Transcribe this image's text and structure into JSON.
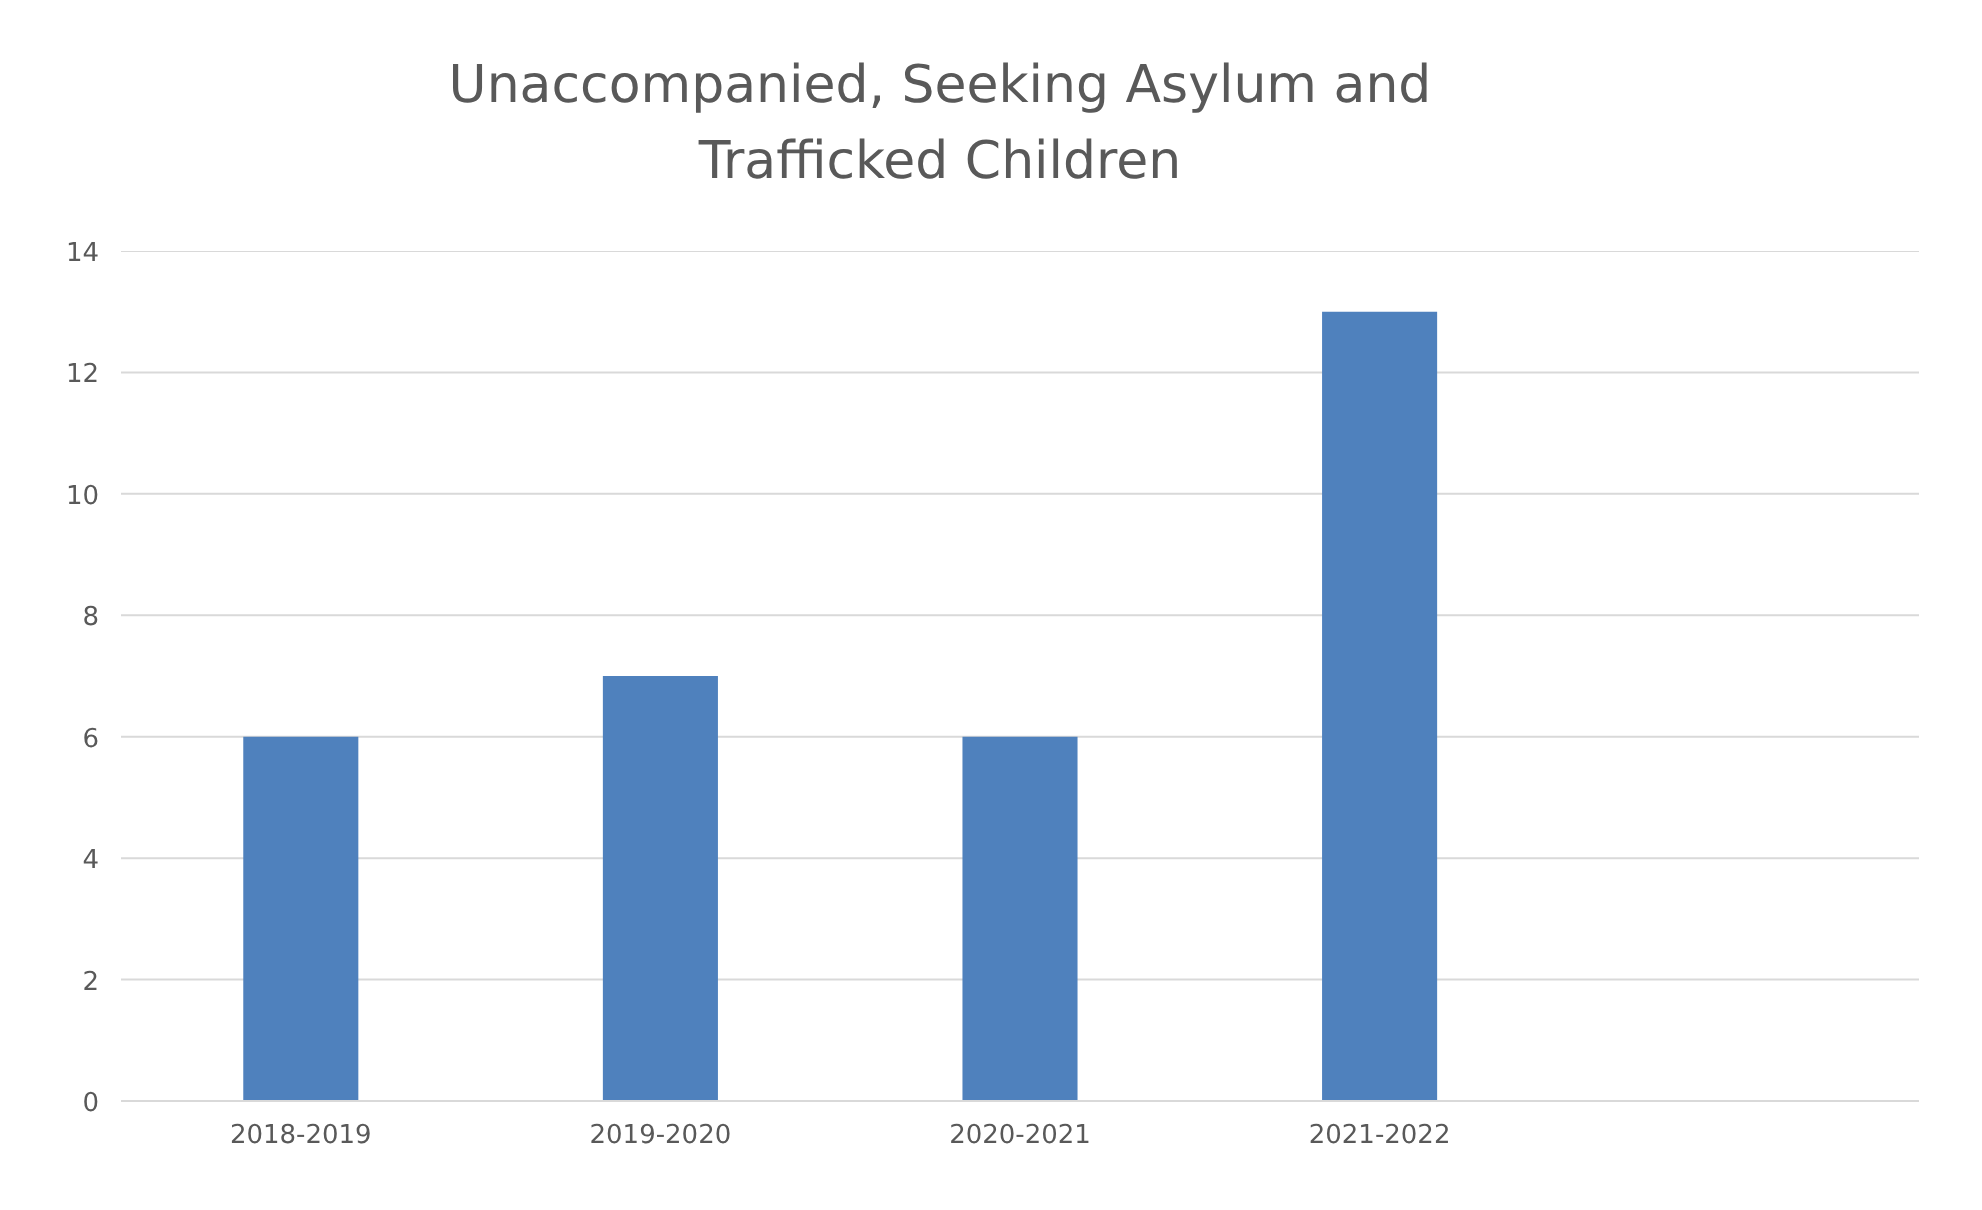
{
  "chart_data": {
    "type": "bar",
    "title": "Unaccompanied, Seeking Asylum and Trafficked Children",
    "categories": [
      "2018-2019",
      "2019-2020",
      "2020-2021",
      "2021-2022",
      null
    ],
    "values": [
      6,
      7,
      6,
      13,
      null
    ],
    "color": "#4f81bd",
    "ylim": [
      0,
      14
    ],
    "yticks": [
      0,
      2,
      4,
      6,
      8,
      10,
      12,
      14
    ],
    "grid": "y"
  }
}
